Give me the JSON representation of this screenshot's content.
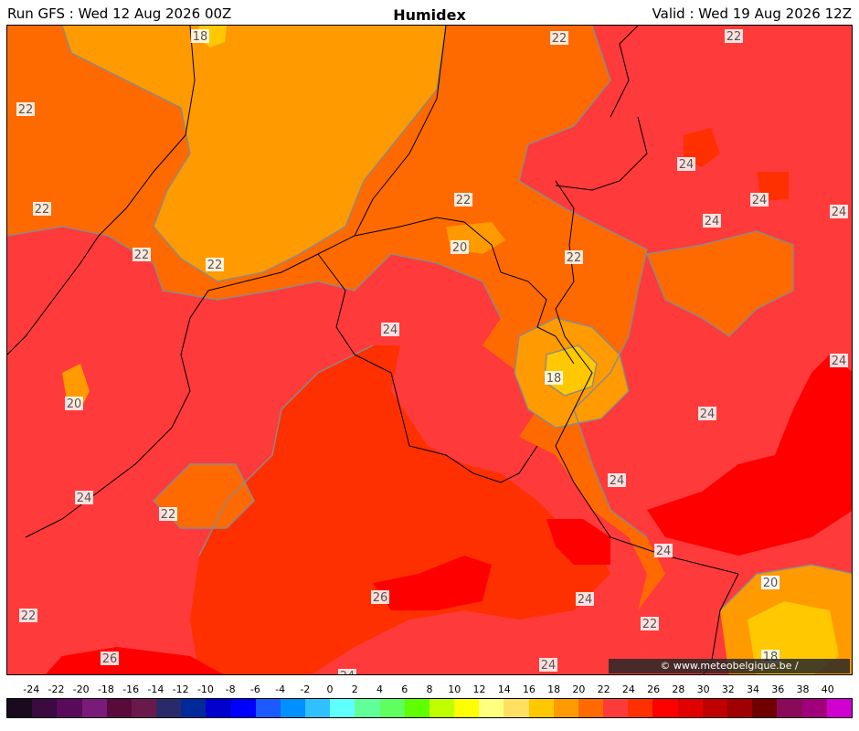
{
  "header": {
    "run": "Run GFS : Wed 12 Aug 2026 00Z",
    "title": "Humidex",
    "valid": "Valid : Wed 19 Aug 2026 12Z"
  },
  "credit": "© www.meteobelgique.be / www.meteobelgie.be",
  "contour_labels": [
    "18",
    "22",
    "22",
    "22",
    "22",
    "22",
    "20",
    "22",
    "22",
    "22",
    "24",
    "24",
    "24",
    "24",
    "24",
    "20",
    "24",
    "18",
    "24",
    "20",
    "24",
    "22",
    "24",
    "24",
    "26",
    "24",
    "22",
    "26",
    "24",
    "24",
    "22",
    "20",
    "18"
  ],
  "scale": {
    "ticks": [
      "-24",
      "-22",
      "-20",
      "-18",
      "-16",
      "-14",
      "-12",
      "-10",
      "-8",
      "-6",
      "-4",
      "-2",
      "0",
      "2",
      "4",
      "6",
      "8",
      "10",
      "12",
      "14",
      "16",
      "18",
      "20",
      "22",
      "24",
      "26",
      "28",
      "30",
      "32",
      "34",
      "36",
      "38",
      "40"
    ],
    "colors": [
      "#1a0a1e",
      "#3a0a40",
      "#5a0a5a",
      "#7a1a7a",
      "#5a0a3a",
      "#6a1a4a",
      "#2a2a6a",
      "#002a9a",
      "#0000cc",
      "#0000ff",
      "#1a5aff",
      "#0090ff",
      "#30c0ff",
      "#60ffff",
      "#60ff9a",
      "#60ff60",
      "#60ff00",
      "#c0ff00",
      "#ffff00",
      "#ffff80",
      "#ffe060",
      "#ffc800",
      "#ff9a00",
      "#ff6a00",
      "#ff3a3a",
      "#ff3000",
      "#ff0000",
      "#e00000",
      "#c00000",
      "#a00000",
      "#700000",
      "#8a0a5a",
      "#a0007a",
      "#d000d0"
    ]
  }
}
